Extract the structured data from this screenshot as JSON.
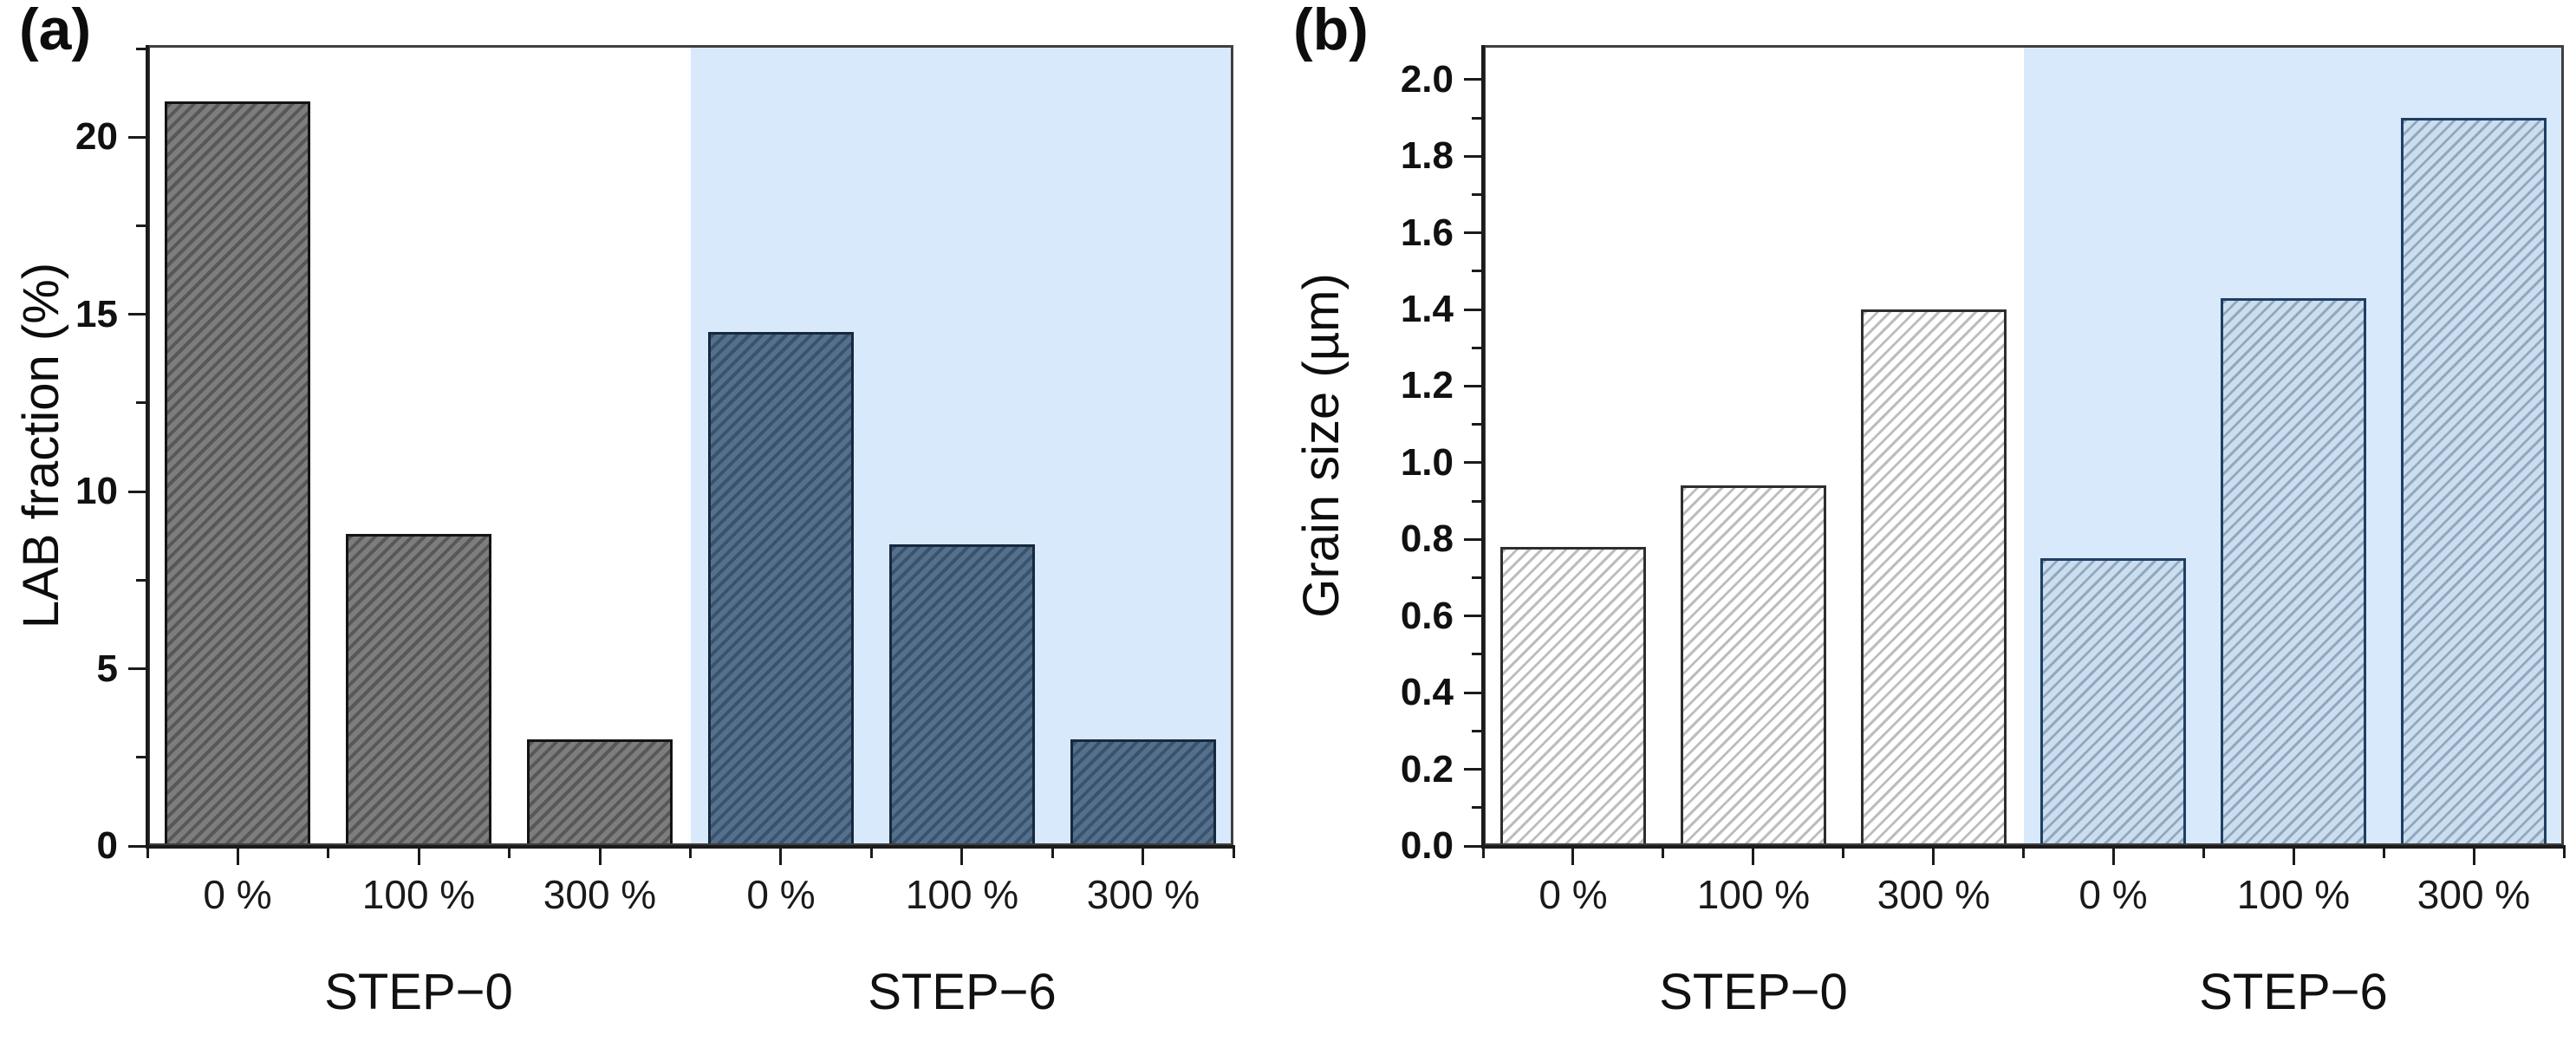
{
  "axis_color": "#2e2e2e",
  "chart_data": [
    {
      "id": "a",
      "type": "bar",
      "panel_label": "(a)",
      "title": "",
      "xlabel": "",
      "ylabel": "LAB fraction (%)",
      "categories": [
        "0 %",
        "100 %",
        "300 %",
        "0 %",
        "100 %",
        "300 %"
      ],
      "group_labels": [
        "STEP−0",
        "STEP−6"
      ],
      "series": [
        {
          "name": "STEP−0",
          "values": [
            21.0,
            8.8,
            3.0
          ]
        },
        {
          "name": "STEP−6",
          "values": [
            14.5,
            8.5,
            3.0
          ]
        }
      ],
      "values": [
        21.0,
        8.8,
        3.0,
        14.5,
        8.5,
        3.0
      ],
      "ylim": [
        0,
        22.6
      ],
      "y_major_ticks": [
        0,
        5,
        10,
        15,
        20
      ],
      "y_tick_labels": [
        "0",
        "5",
        "10",
        "15",
        "20"
      ],
      "y_minor_ticks": [
        2.5,
        7.5,
        12.5,
        17.5,
        22.5
      ],
      "grid": false,
      "legend": false,
      "highlight_region": {
        "covers": "STEP−6 group (right half of plot)",
        "color": "#d8e9fb"
      },
      "styles": {
        "step0_bars": {
          "fill": "#7d7d7d",
          "hatch": "#585858",
          "outline": "#141414",
          "hatch_line": 4,
          "hatch_gap": 6
        },
        "step6_bars": {
          "fill": "#54708d",
          "hatch": "#3a536d",
          "outline": "#16293c",
          "hatch_line": 4,
          "hatch_gap": 6
        }
      }
    },
    {
      "id": "b",
      "type": "bar",
      "panel_label": "(b)",
      "title": "",
      "xlabel": "",
      "ylabel": "Grain size (µm)",
      "categories": [
        "0 %",
        "100 %",
        "300 %",
        "0 %",
        "100 %",
        "300 %"
      ],
      "group_labels": [
        "STEP−0",
        "STEP−6"
      ],
      "series": [
        {
          "name": "STEP−0",
          "values": [
            0.78,
            0.94,
            1.4
          ]
        },
        {
          "name": "STEP−6",
          "values": [
            0.75,
            1.43,
            1.9
          ]
        }
      ],
      "values": [
        0.78,
        0.94,
        1.4,
        0.75,
        1.43,
        1.9
      ],
      "ylim": [
        0,
        2.09
      ],
      "y_major_ticks": [
        0,
        0.2,
        0.4,
        0.6,
        0.8,
        1.0,
        1.2,
        1.4,
        1.6,
        1.8,
        2.0
      ],
      "y_tick_labels": [
        "0.0",
        "0.2",
        "0.4",
        "0.6",
        "0.8",
        "1.0",
        "1.2",
        "1.4",
        "1.6",
        "1.8",
        "2.0"
      ],
      "y_minor_ticks": [
        0.1,
        0.3,
        0.5,
        0.7,
        0.9,
        1.1,
        1.3,
        1.5,
        1.7,
        1.9
      ],
      "grid": false,
      "legend": false,
      "highlight_region": {
        "covers": "STEP−6 group (right half of plot)",
        "color": "#d8e9fb"
      },
      "styles": {
        "step0_bars": {
          "fill": "#ffffff",
          "hatch": "#bdbdbd",
          "outline": "#2e2e2e",
          "hatch_line": 3,
          "hatch_gap": 7
        },
        "step6_bars": {
          "fill": "#ccdeee",
          "hatch": "#90a9c2",
          "outline": "#1f3f63",
          "hatch_line": 3,
          "hatch_gap": 7
        }
      }
    }
  ]
}
